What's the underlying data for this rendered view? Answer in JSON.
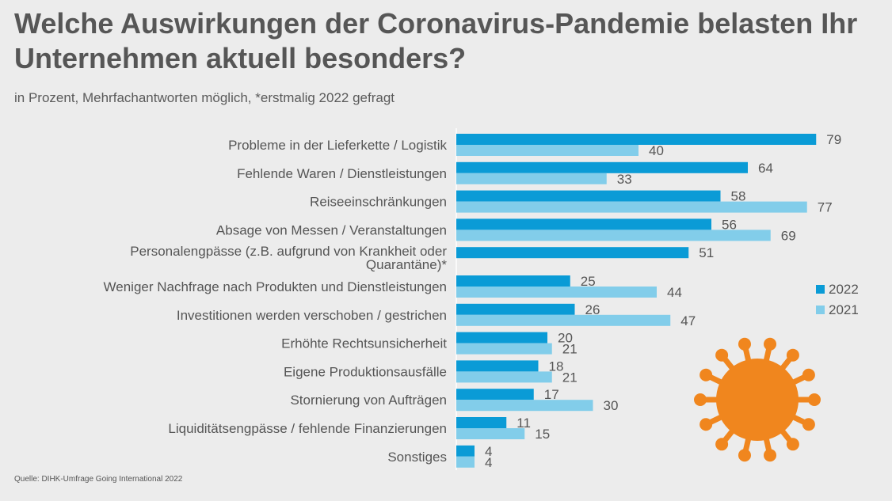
{
  "title": "Welche Auswirkungen der Coronavirus-Pandemie belasten Ihr Unternehmen aktuell besonders?",
  "subtitle": "in Prozent, Mehrfachantworten möglich, *erstmalig 2022 gefragt",
  "source": "Quelle: DIHK-Umfrage Going International 2022",
  "chart_data": {
    "type": "bar",
    "orientation": "horizontal",
    "title": "Welche Auswirkungen der Coronavirus-Pandemie belasten Ihr Unternehmen aktuell besonders?",
    "xlabel": "",
    "ylabel": "",
    "xlim": [
      0,
      85
    ],
    "grid": false,
    "legend": "right",
    "categories": [
      [
        "Probleme in der Lieferkette / Logistik"
      ],
      [
        "Fehlende Waren / Dienstleistungen"
      ],
      [
        "Reiseeinschränkungen"
      ],
      [
        "Absage von Messen / Veranstaltungen"
      ],
      [
        "Personalengpässe (z.B. aufgrund von Krankheit oder",
        "Quarantäne)*"
      ],
      [
        "Weniger Nachfrage nach  Produkten und Dienstleistungen"
      ],
      [
        "Investitionen werden verschoben / gestrichen"
      ],
      [
        "Erhöhte Rechtsunsicherheit"
      ],
      [
        "Eigene Produktionsausfälle"
      ],
      [
        "Stornierung von Aufträgen"
      ],
      [
        "Liquiditätsengpässe / fehlende Finanzierungen"
      ],
      [
        "Sonstiges"
      ]
    ],
    "series": [
      {
        "name": "2022",
        "color": "#0a9bd6",
        "values": [
          79,
          64,
          58,
          56,
          51,
          25,
          26,
          20,
          18,
          17,
          11,
          4
        ]
      },
      {
        "name": "2021",
        "color": "#82cdea",
        "values": [
          40,
          33,
          77,
          69,
          null,
          44,
          47,
          21,
          21,
          30,
          15,
          4
        ]
      }
    ]
  },
  "decor": {
    "virus_icon": "coronavirus-icon",
    "virus_color": "#f0861e"
  }
}
